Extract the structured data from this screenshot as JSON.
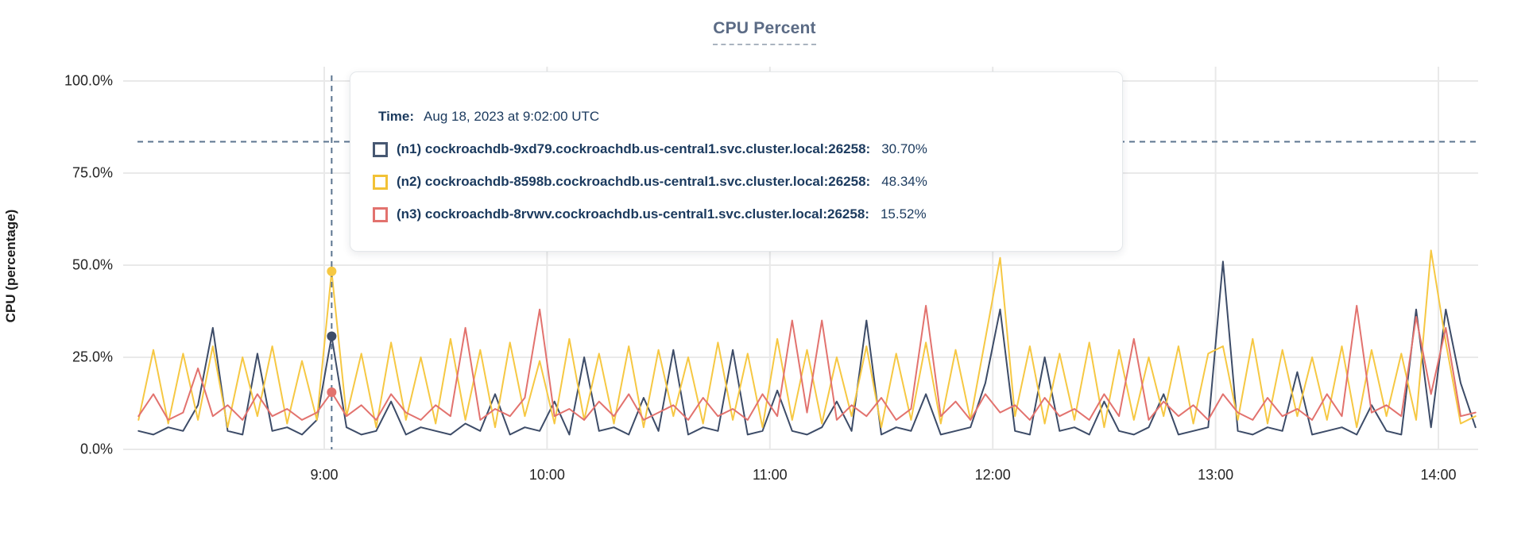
{
  "title": "CPU Percent",
  "axes": {
    "y_label": "CPU (percentage)",
    "y_ticks": [
      {
        "label": "100.0%",
        "value": 100
      },
      {
        "label": "75.0%",
        "value": 75
      },
      {
        "label": "50.0%",
        "value": 50
      },
      {
        "label": "25.0%",
        "value": 25
      },
      {
        "label": "0.0%",
        "value": 0
      }
    ],
    "x_ticks": [
      {
        "label": "9:00",
        "minutes": 540
      },
      {
        "label": "10:00",
        "minutes": 600
      },
      {
        "label": "11:00",
        "minutes": 660
      },
      {
        "label": "12:00",
        "minutes": 720
      },
      {
        "label": "13:00",
        "minutes": 780
      },
      {
        "label": "14:00",
        "minutes": 840
      }
    ]
  },
  "tooltip": {
    "time_label": "Time:",
    "time_value": "Aug 18, 2023 at 9:02:00 UTC",
    "rows": [
      {
        "name": "(n1) cockroachdb-9xd79.cockroachdb.us-central1.svc.cluster.local:26258:",
        "value": "30.70%",
        "color": "#475872"
      },
      {
        "name": "(n2) cockroachdb-8598b.cockroachdb.us-central1.svc.cluster.local:26258:",
        "value": "48.34%",
        "color": "#F2C236"
      },
      {
        "name": "(n3) cockroachdb-8rvwv.cockroachdb.us-central1.svc.cluster.local:26258:",
        "value": "15.52%",
        "color": "#E2726E"
      }
    ]
  },
  "colors": {
    "n1_line": "#3d4c68",
    "n2_line": "#F6C843",
    "n3_line": "#E2726E",
    "grid": "#e9e9e9",
    "dashed_guide": "#5c7590",
    "title_text": "#5b6b85",
    "tooltip_text": "#1b3a5e"
  },
  "chart_data": {
    "type": "line",
    "title": "CPU Percent",
    "xlabel": "",
    "ylabel": "CPU (percentage)",
    "ylim": [
      0,
      100
    ],
    "x_unit": "minutes since midnight (UTC), Aug 18 2023",
    "x_range_label": "~8:10 to ~14:10",
    "grid": true,
    "legend_position": "tooltip-overlay",
    "threshold": {
      "value_pct": 83.5,
      "style": "dashed"
    },
    "hover": {
      "time_minutes": 542,
      "time_label": "Aug 18, 2023 at 9:02:00 UTC",
      "points": [
        {
          "series": "n2",
          "value_pct": 48.34,
          "color": "#F6C843"
        },
        {
          "series": "n1",
          "value_pct": 30.7,
          "color": "#3d4c68"
        },
        {
          "series": "n3",
          "value_pct": 15.52,
          "color": "#E2726E"
        }
      ]
    },
    "x": [
      490,
      494,
      498,
      502,
      506,
      510,
      514,
      518,
      522,
      526,
      530,
      534,
      538,
      542,
      546,
      550,
      554,
      558,
      562,
      566,
      570,
      574,
      578,
      582,
      586,
      590,
      594,
      598,
      602,
      606,
      610,
      614,
      618,
      622,
      626,
      630,
      634,
      638,
      642,
      646,
      650,
      654,
      658,
      662,
      666,
      670,
      674,
      678,
      682,
      686,
      690,
      694,
      698,
      702,
      706,
      710,
      714,
      718,
      722,
      726,
      730,
      734,
      738,
      742,
      746,
      750,
      754,
      758,
      762,
      766,
      770,
      774,
      778,
      782,
      786,
      790,
      794,
      798,
      802,
      806,
      810,
      814,
      818,
      822,
      826,
      830,
      834,
      838,
      842,
      846,
      850
    ],
    "series": [
      {
        "name": "(n1) cockroachdb-9xd79.cockroachdb.us-central1.svc.cluster.local:26258",
        "color": "#3d4c68",
        "values": [
          5,
          4,
          6,
          5,
          12,
          33,
          5,
          4,
          26,
          5,
          6,
          4,
          8,
          30.7,
          6,
          4,
          5,
          13,
          4,
          6,
          5,
          4,
          7,
          5,
          15,
          4,
          6,
          5,
          13,
          4,
          25,
          5,
          6,
          4,
          14,
          5,
          27,
          4,
          6,
          5,
          27,
          4,
          5,
          16,
          5,
          4,
          6,
          13,
          5,
          35,
          4,
          6,
          5,
          15,
          4,
          5,
          6,
          18,
          38,
          5,
          4,
          25,
          5,
          6,
          4,
          13,
          5,
          4,
          6,
          15,
          4,
          5,
          6,
          51,
          5,
          4,
          6,
          5,
          21,
          4,
          5,
          6,
          4,
          12,
          5,
          4,
          38,
          6,
          38,
          18,
          6
        ]
      },
      {
        "name": "(n2) cockroachdb-8598b.cockroachdb.us-central1.svc.cluster.local:26258",
        "color": "#F6C843",
        "values": [
          8,
          27,
          7,
          26,
          8,
          28,
          6,
          25,
          9,
          28,
          7,
          24,
          8,
          48.3,
          9,
          26,
          6,
          29,
          8,
          25,
          7,
          30,
          8,
          27,
          6,
          29,
          9,
          24,
          7,
          30,
          8,
          26,
          7,
          28,
          6,
          27,
          9,
          25,
          7,
          29,
          8,
          26,
          6,
          30,
          8,
          27,
          7,
          25,
          9,
          28,
          6,
          26,
          8,
          29,
          7,
          27,
          8,
          30,
          52,
          9,
          28,
          7,
          26,
          8,
          29,
          6,
          27,
          8,
          25,
          9,
          28,
          7,
          26,
          28,
          8,
          30,
          7,
          27,
          9,
          25,
          8,
          28,
          6,
          27,
          9,
          26,
          8,
          54,
          29,
          7,
          9
        ]
      },
      {
        "name": "(n3) cockroachdb-8rvwv.cockroachdb.us-central1.svc.cluster.local:26258",
        "color": "#E2726E",
        "values": [
          9,
          15,
          8,
          10,
          22,
          9,
          12,
          8,
          15,
          9,
          11,
          8,
          10,
          15.5,
          9,
          12,
          8,
          15,
          10,
          8,
          12,
          9,
          33,
          8,
          11,
          9,
          14,
          38,
          9,
          11,
          8,
          13,
          9,
          15,
          8,
          10,
          12,
          8,
          14,
          9,
          11,
          8,
          15,
          9,
          35,
          10,
          35,
          8,
          12,
          9,
          14,
          8,
          11,
          39,
          9,
          13,
          8,
          15,
          10,
          12,
          8,
          14,
          9,
          11,
          8,
          15,
          9,
          30,
          8,
          13,
          9,
          12,
          8,
          15,
          10,
          8,
          14,
          9,
          11,
          8,
          15,
          9,
          39,
          10,
          12,
          9,
          36,
          15,
          33,
          9,
          10
        ]
      }
    ]
  }
}
